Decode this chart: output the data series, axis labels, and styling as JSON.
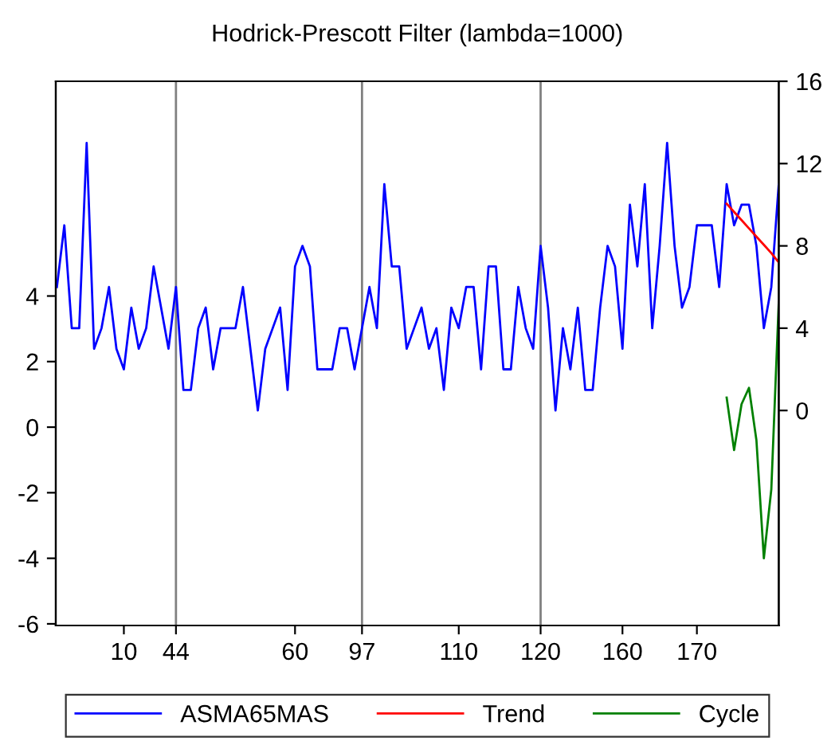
{
  "chart_data": {
    "type": "line",
    "title": "Hodrick-Prescott Filter (lambda=1000)",
    "categories": [
      null,
      null,
      null,
      null,
      null,
      null,
      null,
      null,
      null,
      "10",
      null,
      null,
      null,
      null,
      null,
      null,
      "44",
      null,
      null,
      null,
      null,
      null,
      null,
      null,
      null,
      null,
      null,
      null,
      null,
      null,
      null,
      null,
      "60",
      null,
      null,
      null,
      null,
      null,
      null,
      null,
      null,
      "97",
      null,
      null,
      null,
      null,
      null,
      null,
      null,
      null,
      null,
      null,
      null,
      null,
      "110",
      null,
      null,
      null,
      null,
      null,
      null,
      null,
      null,
      null,
      null,
      "120",
      null,
      null,
      null,
      null,
      null,
      null,
      null,
      null,
      null,
      null,
      "160",
      null,
      null,
      null,
      null,
      null,
      null,
      null,
      null,
      null,
      "170",
      null,
      null,
      null,
      null,
      null,
      null,
      null,
      null,
      null,
      null,
      null
    ],
    "series": [
      {
        "name": "ASMA65MAS",
        "color": "#0000ff",
        "axis": "y2",
        "values": [
          6,
          9,
          4,
          4,
          13,
          3,
          4,
          6,
          3,
          2,
          5,
          3,
          4,
          7,
          5,
          3,
          6,
          1,
          1,
          4,
          5,
          2,
          4,
          4,
          4,
          6,
          3,
          0,
          3,
          4,
          5,
          1,
          7,
          8,
          7,
          2,
          2,
          2,
          4,
          4,
          2,
          4,
          6,
          4,
          11,
          7,
          7,
          3,
          4,
          5,
          3,
          4,
          1,
          5,
          4,
          6,
          6,
          2,
          7,
          7,
          2,
          2,
          6,
          4,
          3,
          8,
          5,
          0,
          4,
          2,
          5,
          1,
          1,
          5,
          8,
          7,
          3,
          10,
          7,
          11,
          4,
          8,
          13,
          8,
          5,
          6,
          9,
          9,
          9,
          6,
          11,
          9,
          10,
          10,
          8,
          4,
          6,
          11
        ]
      },
      {
        "name": "Trend",
        "color": "#ff0000",
        "axis": "y2",
        "values": [
          null,
          null,
          null,
          null,
          null,
          null,
          null,
          null,
          null,
          null,
          null,
          null,
          null,
          null,
          null,
          null,
          null,
          null,
          null,
          null,
          null,
          null,
          null,
          null,
          null,
          null,
          null,
          null,
          null,
          null,
          null,
          null,
          null,
          null,
          null,
          null,
          null,
          null,
          null,
          null,
          null,
          null,
          null,
          null,
          null,
          null,
          null,
          null,
          null,
          null,
          null,
          null,
          null,
          null,
          null,
          null,
          null,
          null,
          null,
          null,
          null,
          null,
          null,
          null,
          null,
          null,
          null,
          null,
          null,
          null,
          null,
          null,
          null,
          null,
          null,
          null,
          null,
          null,
          null,
          null,
          null,
          null,
          null,
          null,
          null,
          null,
          null,
          null,
          null,
          null,
          10.05,
          9.65,
          9.25,
          8.85,
          8.45,
          8.05,
          7.65,
          7.2
        ]
      },
      {
        "name": "Cycle",
        "color": "#008000",
        "axis": "y",
        "values": [
          null,
          null,
          null,
          null,
          null,
          null,
          null,
          null,
          null,
          null,
          null,
          null,
          null,
          null,
          null,
          null,
          null,
          null,
          null,
          null,
          null,
          null,
          null,
          null,
          null,
          null,
          null,
          null,
          null,
          null,
          null,
          null,
          null,
          null,
          null,
          null,
          null,
          null,
          null,
          null,
          null,
          null,
          null,
          null,
          null,
          null,
          null,
          null,
          null,
          null,
          null,
          null,
          null,
          null,
          null,
          null,
          null,
          null,
          null,
          null,
          null,
          null,
          null,
          null,
          null,
          null,
          null,
          null,
          null,
          null,
          null,
          null,
          null,
          null,
          null,
          null,
          null,
          null,
          null,
          null,
          null,
          null,
          null,
          null,
          null,
          null,
          null,
          null,
          null,
          null,
          0.9,
          -0.7,
          0.7,
          1.2,
          -0.4,
          -4.0,
          -1.9,
          3.8
        ]
      }
    ],
    "ylim": [
      -6.05,
      10.55
    ],
    "yticks": [
      -6,
      -4,
      -2,
      0,
      2,
      4
    ],
    "y2lim": [
      -10.45,
      16
    ],
    "y2ticks": [
      0,
      4,
      8,
      12,
      16
    ],
    "ref_lines": [
      {
        "axis": "x",
        "value": "44",
        "color": "#808080"
      },
      {
        "axis": "x",
        "value": "97",
        "color": "#808080"
      },
      {
        "axis": "x",
        "value": "120",
        "color": "#808080"
      }
    ],
    "grid": false,
    "legend": "bottom"
  }
}
